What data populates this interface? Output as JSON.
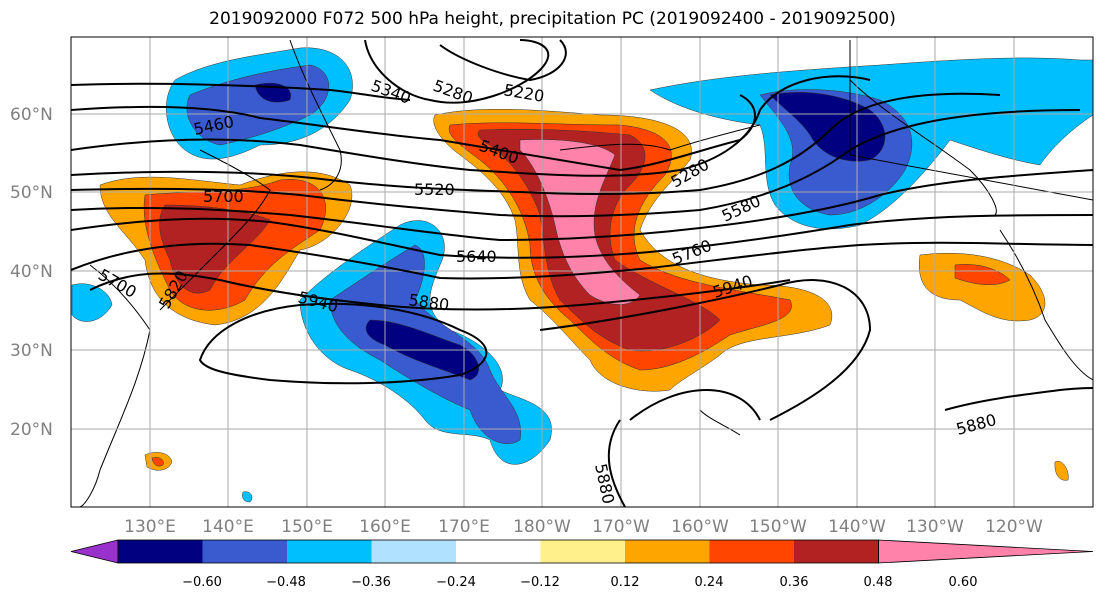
{
  "title": "2019092000 F072 500 hPa height, precipitation PC (2019092400 - 2019092500)",
  "lat_labels": [
    "60°N",
    "50°N",
    "40°N",
    "30°N",
    "20°N"
  ],
  "lon_labels": [
    "130°E",
    "140°E",
    "150°E",
    "160°E",
    "170°E",
    "180°W",
    "170°W",
    "160°W",
    "150°W",
    "140°W",
    "130°W",
    "120°W"
  ],
  "contour_labels": [
    "5340",
    "5280",
    "5220",
    "5460",
    "5400",
    "5280",
    "5520",
    "5700",
    "5580",
    "5640",
    "5760",
    "5700",
    "5820",
    "5940",
    "5880",
    "5940",
    "5880",
    "5880"
  ],
  "colorbar": {
    "colors": [
      "#9932cc",
      "#000080",
      "#3a5bcf",
      "#00bfff",
      "#b0e2ff",
      "#ffffff",
      "#fff08c",
      "#ffa500",
      "#ff4500",
      "#b22222",
      "#ff82ab"
    ],
    "tick_labels": [
      "−0.60",
      "−0.48",
      "−0.36",
      "−0.24",
      "−0.12",
      "0.12",
      "0.24",
      "0.36",
      "0.48",
      "0.60"
    ]
  }
}
